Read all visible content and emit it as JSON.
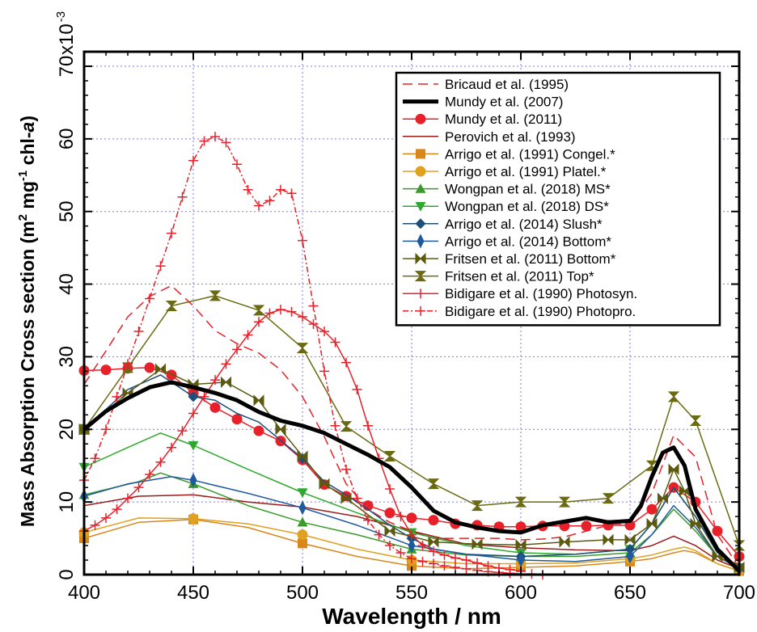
{
  "chart_data": {
    "type": "line",
    "xlabel": "Wavelength / nm",
    "ylabel_parts": [
      "Mass Absorption Cross section (m",
      "2",
      " mg",
      "-1",
      " chl-",
      "a",
      ")"
    ],
    "y_multiplier": "x10",
    "y_multiplier_exp": "-3",
    "xlim": [
      400,
      700
    ],
    "ylim": [
      0,
      0.072
    ],
    "x_ticks": [
      400,
      450,
      500,
      550,
      600,
      650,
      700
    ],
    "y_ticks": [
      0,
      0.01,
      0.02,
      0.03,
      0.04,
      0.05,
      0.06,
      0.07
    ],
    "y_tick_labels": [
      "0",
      "10",
      "20",
      "30",
      "40",
      "50",
      "60",
      "70"
    ],
    "grid": true,
    "legend_position": "top-right",
    "series": [
      {
        "name": "Bricaud et al. (1995)",
        "color": "#e8202a",
        "dash": "12,7",
        "width": 1.5,
        "marker": "none",
        "x": [
          400,
          410,
          420,
          430,
          440,
          450,
          460,
          470,
          480,
          490,
          500,
          510,
          520,
          530,
          540,
          550,
          560,
          570,
          580,
          590,
          600,
          610,
          620,
          630,
          640,
          650,
          660,
          670,
          680,
          690,
          700
        ],
        "y": [
          0.0262,
          0.0308,
          0.0355,
          0.0383,
          0.0398,
          0.037,
          0.0336,
          0.0318,
          0.0305,
          0.0282,
          0.0245,
          0.019,
          0.0125,
          0.009,
          0.0072,
          0.006,
          0.005,
          0.005,
          0.005,
          0.005,
          0.0048,
          0.0049,
          0.0052,
          0.006,
          0.0068,
          0.007,
          0.0112,
          0.0192,
          0.0162,
          0.0055,
          0.001
        ]
      },
      {
        "name": "Mundy et al. (2007)",
        "color": "#000000",
        "dash": "",
        "width": 5,
        "marker": "none",
        "x": [
          400,
          410,
          420,
          430,
          440,
          450,
          460,
          470,
          480,
          490,
          500,
          510,
          520,
          530,
          540,
          550,
          560,
          570,
          580,
          590,
          600,
          610,
          620,
          630,
          640,
          650,
          655,
          660,
          665,
          670,
          675,
          680,
          690,
          700
        ],
        "y": [
          0.02,
          0.0225,
          0.0243,
          0.0258,
          0.0265,
          0.0258,
          0.025,
          0.024,
          0.0224,
          0.0212,
          0.0205,
          0.0195,
          0.018,
          0.0165,
          0.0148,
          0.012,
          0.0088,
          0.0072,
          0.0065,
          0.006,
          0.0058,
          0.0068,
          0.0073,
          0.0078,
          0.0072,
          0.0074,
          0.0095,
          0.0135,
          0.0168,
          0.0175,
          0.015,
          0.009,
          0.0035,
          0.0005
        ]
      },
      {
        "name": "Mundy et al. (2011)",
        "color": "#e8202a",
        "dash": "",
        "width": 1.5,
        "marker": "circle",
        "x": [
          400,
          410,
          420,
          430,
          440,
          450,
          460,
          470,
          480,
          490,
          500,
          510,
          520,
          530,
          540,
          550,
          560,
          570,
          580,
          590,
          600,
          610,
          620,
          630,
          640,
          650,
          660,
          670,
          680,
          690,
          700
        ],
        "y": [
          0.0281,
          0.0282,
          0.0284,
          0.0285,
          0.0275,
          0.025,
          0.023,
          0.0214,
          0.0198,
          0.0184,
          0.0158,
          0.0124,
          0.0108,
          0.0095,
          0.0085,
          0.0078,
          0.0075,
          0.007,
          0.0068,
          0.0066,
          0.0066,
          0.0067,
          0.0067,
          0.0067,
          0.0068,
          0.0068,
          0.009,
          0.012,
          0.01,
          0.006,
          0.0025
        ]
      },
      {
        "name": "Perovich et al. (1993)",
        "color": "#9a1a1a",
        "dash": "",
        "width": 1.5,
        "marker": "none",
        "x": [
          400,
          425,
          450,
          475,
          500,
          525,
          550,
          575,
          600,
          625,
          650,
          660,
          670,
          680,
          690,
          700
        ],
        "y": [
          0.0095,
          0.0108,
          0.011,
          0.01,
          0.0093,
          0.008,
          0.006,
          0.0042,
          0.0037,
          0.0034,
          0.0033,
          0.004,
          0.0053,
          0.004,
          0.002,
          0.0008
        ]
      },
      {
        "name": "Arrigo et al. (1991) Congel.*",
        "color": "#d9861a",
        "dash": "",
        "width": 1.5,
        "marker": "square",
        "x": [
          400,
          425,
          450,
          475,
          500,
          525,
          550,
          575,
          600,
          625,
          650,
          660,
          670,
          675,
          680,
          690,
          700
        ],
        "y": [
          0.005,
          0.0072,
          0.0076,
          0.0065,
          0.0043,
          0.0025,
          0.0012,
          0.0008,
          0.001,
          0.0012,
          0.0018,
          0.0022,
          0.003,
          0.0033,
          0.003,
          0.0015,
          0.0005
        ],
        "marker_x": [
          400,
          450,
          500,
          550,
          600,
          650,
          700
        ]
      },
      {
        "name": "Arrigo et al. (1991) Platel.*",
        "color": "#e0a020",
        "dash": "",
        "width": 1.5,
        "marker": "circle",
        "x": [
          400,
          425,
          450,
          475,
          500,
          525,
          550,
          575,
          600,
          625,
          650,
          660,
          670,
          675,
          680,
          690,
          700
        ],
        "y": [
          0.0058,
          0.0078,
          0.0077,
          0.007,
          0.0055,
          0.0035,
          0.002,
          0.0015,
          0.0015,
          0.0016,
          0.0022,
          0.0027,
          0.0035,
          0.0038,
          0.0033,
          0.0015,
          0.0005
        ],
        "marker_x": [
          400,
          450,
          500,
          550,
          600,
          650,
          700
        ]
      },
      {
        "name": "Wongpan et al. (2018) MS*",
        "color": "#3a9a2a",
        "dash": "",
        "width": 1.5,
        "marker": "triangle-up",
        "x": [
          400,
          425,
          435,
          450,
          475,
          500,
          525,
          550,
          575,
          600,
          625,
          650,
          660,
          670,
          680,
          690,
          700
        ],
        "y": [
          0.011,
          0.0128,
          0.014,
          0.0125,
          0.0095,
          0.0072,
          0.0055,
          0.0035,
          0.0027,
          0.0025,
          0.0025,
          0.003,
          0.0055,
          0.009,
          0.006,
          0.0025,
          0.001
        ],
        "marker_x": [
          400,
          450,
          500,
          550,
          600,
          650,
          700
        ]
      },
      {
        "name": "Wongpan et al. (2018) DS*",
        "color": "#2ea82e",
        "dash": "",
        "width": 1.5,
        "marker": "triangle-down",
        "x": [
          400,
          420,
          435,
          450,
          475,
          500,
          525,
          550,
          575,
          600,
          625,
          650,
          660,
          670,
          680,
          690,
          700
        ],
        "y": [
          0.0148,
          0.0175,
          0.0195,
          0.0178,
          0.0145,
          0.0113,
          0.0085,
          0.0058,
          0.004,
          0.003,
          0.0028,
          0.0035,
          0.007,
          0.012,
          0.008,
          0.003,
          0.001
        ],
        "marker_x": [
          400,
          450,
          500,
          550,
          600,
          650,
          700
        ]
      },
      {
        "name": "Arrigo et al. (2014) Slush*",
        "color": "#1c4f7a",
        "dash": "",
        "width": 1.5,
        "marker": "diamond",
        "x": [
          400,
          420,
          435,
          450,
          460,
          470,
          480,
          490,
          500,
          510,
          520,
          530,
          540,
          550,
          560,
          575,
          600,
          625,
          650,
          660,
          670,
          680,
          690,
          700
        ],
        "y": [
          0.02,
          0.0255,
          0.0275,
          0.0245,
          0.024,
          0.0222,
          0.021,
          0.0185,
          0.016,
          0.0128,
          0.011,
          0.009,
          0.0068,
          0.005,
          0.0035,
          0.0028,
          0.0025,
          0.0028,
          0.0035,
          0.007,
          0.012,
          0.008,
          0.003,
          0.001
        ],
        "marker_x": [
          400,
          450,
          500,
          550,
          600,
          650,
          700
        ]
      },
      {
        "name": "Arrigo et al. (2014) Bottom*",
        "color": "#1f5a9e",
        "dash": "",
        "width": 1.5,
        "marker": "thin-diamond",
        "x": [
          400,
          420,
          440,
          450,
          475,
          500,
          525,
          550,
          575,
          600,
          625,
          650,
          660,
          670,
          680,
          690,
          700
        ],
        "y": [
          0.0108,
          0.0125,
          0.0135,
          0.013,
          0.0112,
          0.0092,
          0.0068,
          0.004,
          0.0028,
          0.002,
          0.0018,
          0.0025,
          0.0055,
          0.0095,
          0.0065,
          0.0025,
          0.0008
        ],
        "marker_x": [
          400,
          450,
          500,
          550,
          600,
          650,
          700
        ]
      },
      {
        "name": "Fritsen et al. (2011) Bottom*",
        "color": "#5c5a10",
        "dash": "",
        "width": 1.5,
        "marker": "bowtie",
        "x": [
          400,
          420,
          435,
          450,
          465,
          480,
          490,
          500,
          510,
          520,
          540,
          560,
          580,
          600,
          620,
          640,
          650,
          660,
          665,
          670,
          675,
          680,
          690,
          700
        ],
        "y": [
          0.02,
          0.025,
          0.0283,
          0.0262,
          0.0265,
          0.024,
          0.02,
          0.0163,
          0.0125,
          0.0105,
          0.006,
          0.0045,
          0.0042,
          0.0041,
          0.0045,
          0.0048,
          0.0048,
          0.007,
          0.0105,
          0.0145,
          0.0115,
          0.007,
          0.0025,
          0.001
        ],
        "marker_x": [
          400,
          420,
          435,
          450,
          465,
          480,
          490,
          500,
          510,
          520,
          540,
          560,
          580,
          600,
          620,
          640,
          650,
          660,
          665,
          670,
          675,
          680,
          690,
          700
        ]
      },
      {
        "name": "Fritsen et al. (2011) Top*",
        "color": "#6a6a12",
        "dash": "",
        "width": 1.5,
        "marker": "hourglass",
        "x": [
          400,
          420,
          440,
          460,
          480,
          500,
          520,
          540,
          560,
          580,
          600,
          620,
          640,
          660,
          670,
          680,
          700
        ],
        "y": [
          0.02,
          0.0285,
          0.037,
          0.0384,
          0.0364,
          0.0312,
          0.0204,
          0.0163,
          0.0125,
          0.0095,
          0.01,
          0.01,
          0.0105,
          0.015,
          0.0245,
          0.0212,
          0.004
        ],
        "marker_x": [
          400,
          420,
          440,
          460,
          480,
          500,
          520,
          540,
          560,
          580,
          600,
          620,
          640,
          660,
          670,
          680,
          700
        ]
      },
      {
        "name": "Bidigare et al. (1990) Photosyn.",
        "color": "#e8202a",
        "dash": "",
        "width": 1.5,
        "marker": "plus",
        "x": [
          400,
          405,
          410,
          415,
          420,
          425,
          430,
          435,
          440,
          445,
          450,
          455,
          460,
          465,
          470,
          475,
          480,
          485,
          490,
          495,
          500,
          505,
          510,
          515,
          520,
          525,
          530,
          535,
          540,
          545,
          550,
          555,
          560,
          565,
          570,
          575,
          580,
          585,
          590,
          595,
          600
        ],
        "y": [
          0.006,
          0.0068,
          0.0078,
          0.009,
          0.0105,
          0.012,
          0.0138,
          0.0155,
          0.0175,
          0.0198,
          0.0222,
          0.0245,
          0.0268,
          0.029,
          0.031,
          0.033,
          0.0348,
          0.036,
          0.0365,
          0.0362,
          0.0355,
          0.0345,
          0.0335,
          0.032,
          0.0292,
          0.0255,
          0.0205,
          0.016,
          0.0118,
          0.008,
          0.0055,
          0.004,
          0.0032,
          0.0027,
          0.0023,
          0.002,
          0.0016,
          0.0012,
          0.0009,
          0.0007,
          0.0005
        ],
        "marker_x": [
          400,
          405,
          410,
          415,
          420,
          425,
          430,
          435,
          440,
          445,
          450,
          455,
          460,
          465,
          470,
          475,
          480,
          485,
          490,
          495,
          500,
          505,
          510,
          515,
          520,
          525,
          530,
          535,
          540,
          545,
          550,
          555,
          560,
          565,
          570,
          575,
          580,
          585,
          590,
          595,
          600
        ]
      },
      {
        "name": "Bidigare et al. (1990) Photopro.",
        "color": "#e8202a",
        "dash": "7,3,2,3",
        "width": 1.5,
        "marker": "plus",
        "x": [
          400,
          405,
          410,
          415,
          420,
          425,
          430,
          435,
          440,
          445,
          450,
          455,
          460,
          465,
          470,
          475,
          480,
          485,
          490,
          495,
          500,
          505,
          510,
          515,
          520,
          525,
          530,
          535,
          540,
          545,
          550,
          555,
          560,
          565,
          570,
          575,
          580,
          585,
          590,
          595,
          600,
          605,
          610
        ],
        "y": [
          0.013,
          0.016,
          0.02,
          0.0245,
          0.029,
          0.0335,
          0.038,
          0.0425,
          0.047,
          0.052,
          0.057,
          0.0597,
          0.0603,
          0.0595,
          0.0565,
          0.053,
          0.0508,
          0.0515,
          0.053,
          0.0525,
          0.046,
          0.037,
          0.028,
          0.0205,
          0.0145,
          0.0105,
          0.0075,
          0.0055,
          0.004,
          0.003,
          0.0022,
          0.0018,
          0.0015,
          0.0012,
          0.001,
          0.0008,
          0.0006,
          0.0004,
          0.0003,
          0.0002,
          0.0001,
          0.0001,
          0.0
        ],
        "marker_x": [
          400,
          405,
          410,
          415,
          420,
          425,
          430,
          435,
          440,
          445,
          450,
          455,
          460,
          465,
          470,
          475,
          480,
          485,
          490,
          495,
          500,
          505,
          510,
          515,
          520,
          525,
          530,
          535,
          540,
          545,
          550,
          555,
          560,
          565,
          570,
          575,
          580,
          585,
          590,
          595,
          600,
          605,
          610
        ]
      }
    ]
  }
}
